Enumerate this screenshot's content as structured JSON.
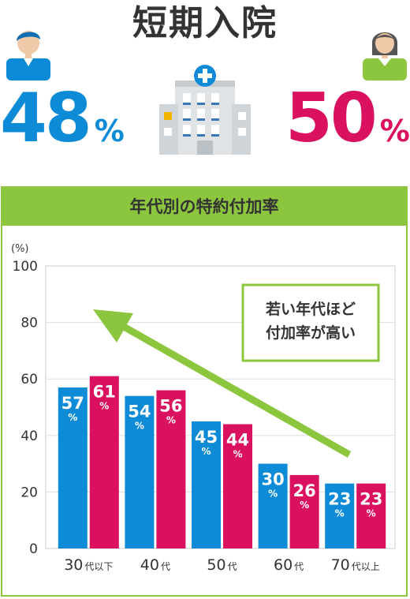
{
  "header": {
    "title": "短期入院",
    "male": {
      "value": "48",
      "unit": "%"
    },
    "female": {
      "value": "50",
      "unit": "%"
    }
  },
  "panel": {
    "title": "年代別の特約付加率"
  },
  "colors": {
    "male": "#0e8bd6",
    "female": "#d9115f",
    "accent": "#8cc63f"
  },
  "icons": [
    "man-icon",
    "hospital-icon",
    "woman-icon"
  ],
  "chart_data": {
    "type": "bar",
    "title": "年代別の特約付加率",
    "ylabel": "(%)",
    "ylim": [
      0,
      100
    ],
    "yticks": [
      "0",
      "20",
      "40",
      "60",
      "80",
      "100"
    ],
    "categories": [
      {
        "num": "30",
        "suffix": "代以下"
      },
      {
        "num": "40",
        "suffix": "代"
      },
      {
        "num": "50",
        "suffix": "代"
      },
      {
        "num": "60",
        "suffix": "代"
      },
      {
        "num": "70",
        "suffix": "代以上"
      }
    ],
    "series": [
      {
        "values": [
          57,
          54,
          45,
          30,
          23
        ]
      },
      {
        "values": [
          61,
          56,
          44,
          26,
          23
        ]
      }
    ],
    "value_unit": "%",
    "annotation": [
      "若い年代ほど",
      "付加率が高い"
    ]
  }
}
